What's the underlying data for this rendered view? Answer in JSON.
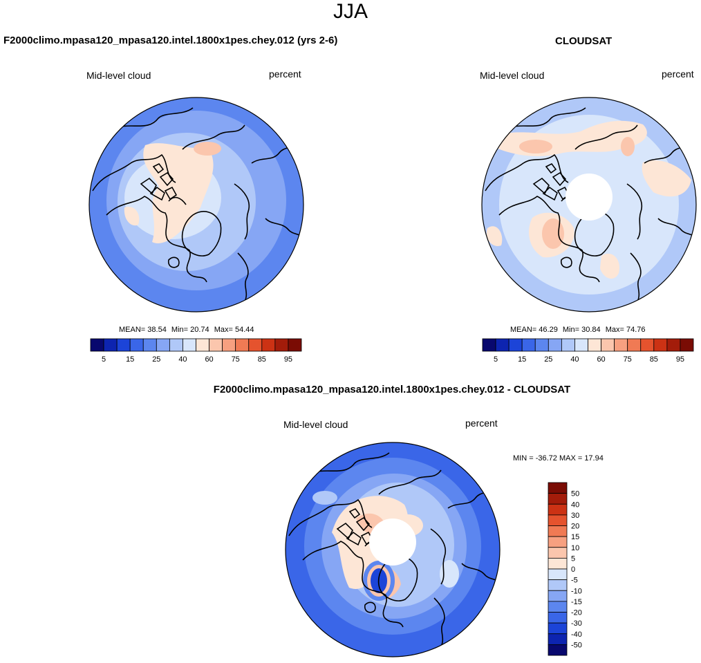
{
  "main_title": "JJA",
  "chart_data": [
    {
      "type": "heatmap",
      "projection": "north-polar-stereographic",
      "case_title": "F2000climo.mpasa120_mpasa120.intel.1800x1pes.chey.012 (yrs 2-6)",
      "variable_label": "Mid-level cloud",
      "units": "percent",
      "stats": {
        "mean_label": "MEAN=",
        "mean": 38.54,
        "min_label": "Min=",
        "min": 20.74,
        "max_label": "Max=",
        "max": 54.44
      },
      "colorbar": {
        "levels": [
          5,
          10,
          15,
          20,
          25,
          30,
          40,
          50,
          60,
          70,
          75,
          80,
          85,
          90,
          95
        ],
        "tick_labels": [
          "5",
          "15",
          "25",
          "40",
          "60",
          "75",
          "85",
          "95"
        ]
      }
    },
    {
      "type": "heatmap",
      "projection": "north-polar-stereographic",
      "case_title": "CLOUDSAT",
      "variable_label": "Mid-level cloud",
      "units": "percent",
      "stats": {
        "mean_label": "MEAN=",
        "mean": 46.29,
        "min_label": "Min=",
        "min": 30.84,
        "max_label": "Max=",
        "max": 74.76
      },
      "colorbar": {
        "levels": [
          5,
          10,
          15,
          20,
          25,
          30,
          40,
          50,
          60,
          70,
          75,
          80,
          85,
          90,
          95
        ],
        "tick_labels": [
          "5",
          "15",
          "25",
          "40",
          "60",
          "75",
          "85",
          "95"
        ]
      }
    },
    {
      "type": "heatmap",
      "projection": "north-polar-stereographic",
      "case_title": "F2000climo.mpasa120_mpasa120.intel.1800x1pes.chey.012 - CLOUDSAT",
      "variable_label": "Mid-level cloud",
      "units": "percent",
      "stats_text": "MIN = -36.72 MAX =  17.94",
      "colorbar": {
        "tick_labels": [
          "50",
          "40",
          "30",
          "20",
          "15",
          "10",
          "5",
          "0",
          "-5",
          "-10",
          "-15",
          "-20",
          "-30",
          "-40",
          "-50"
        ]
      }
    }
  ],
  "colors": {
    "seq_palette": [
      "#08086e",
      "#0d24b0",
      "#1c44d8",
      "#3a66e8",
      "#5c86ef",
      "#86a6f4",
      "#b0c8f8",
      "#d8e6fb",
      "#fde6d6",
      "#fbc6ad",
      "#f7a080",
      "#f07a54",
      "#e5532e",
      "#cc3214",
      "#a31c0a",
      "#7a0c04"
    ],
    "diff_palette": [
      "#7a0c04",
      "#a31c0a",
      "#cc3214",
      "#e5532e",
      "#f07a54",
      "#f7a080",
      "#fbc6ad",
      "#fde6d6",
      "#d8e6fb",
      "#b0c8f8",
      "#86a6f4",
      "#5c86ef",
      "#3a66e8",
      "#1c44d8",
      "#0d24b0",
      "#08086e"
    ]
  }
}
